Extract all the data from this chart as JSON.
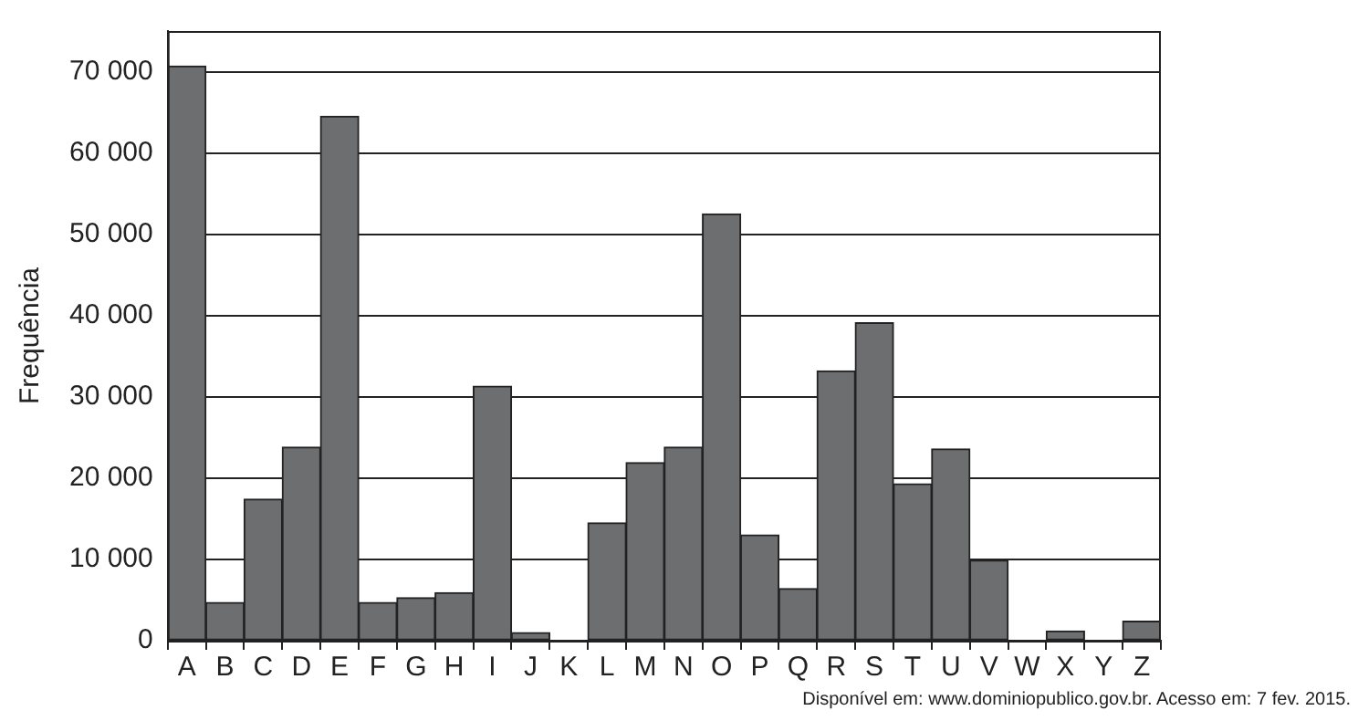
{
  "chart_data": {
    "type": "bar",
    "ylabel": "Frequência",
    "categories": [
      "A",
      "B",
      "C",
      "D",
      "E",
      "F",
      "G",
      "H",
      "I",
      "J",
      "K",
      "L",
      "M",
      "N",
      "O",
      "P",
      "Q",
      "R",
      "S",
      "T",
      "U",
      "V",
      "W",
      "X",
      "Y",
      "Z"
    ],
    "values": [
      70700,
      4700,
      17400,
      23800,
      64500,
      4700,
      5300,
      5900,
      31300,
      1000,
      0,
      14500,
      21900,
      23800,
      52500,
      13000,
      6400,
      33200,
      39100,
      19300,
      23600,
      9900,
      0,
      1200,
      0,
      2400
    ],
    "color": "#6d6e70",
    "ylim": [
      0,
      75000
    ],
    "yticks": [
      0,
      {
        "value": 10000,
        "label": "10 000"
      },
      {
        "value": 20000,
        "label": "20 000"
      },
      {
        "value": 30000,
        "label": "30 000"
      },
      {
        "value": 40000,
        "label": "40 000"
      },
      {
        "value": 50000,
        "label": "50 000"
      },
      {
        "value": 60000,
        "label": "60 000"
      },
      {
        "value": 70000,
        "label": "70 000"
      }
    ],
    "grid": "y",
    "annotations": [
      "Disponível em: www.dominiopublico.gov.br. Acesso em: 7 fev. 2015."
    ]
  }
}
